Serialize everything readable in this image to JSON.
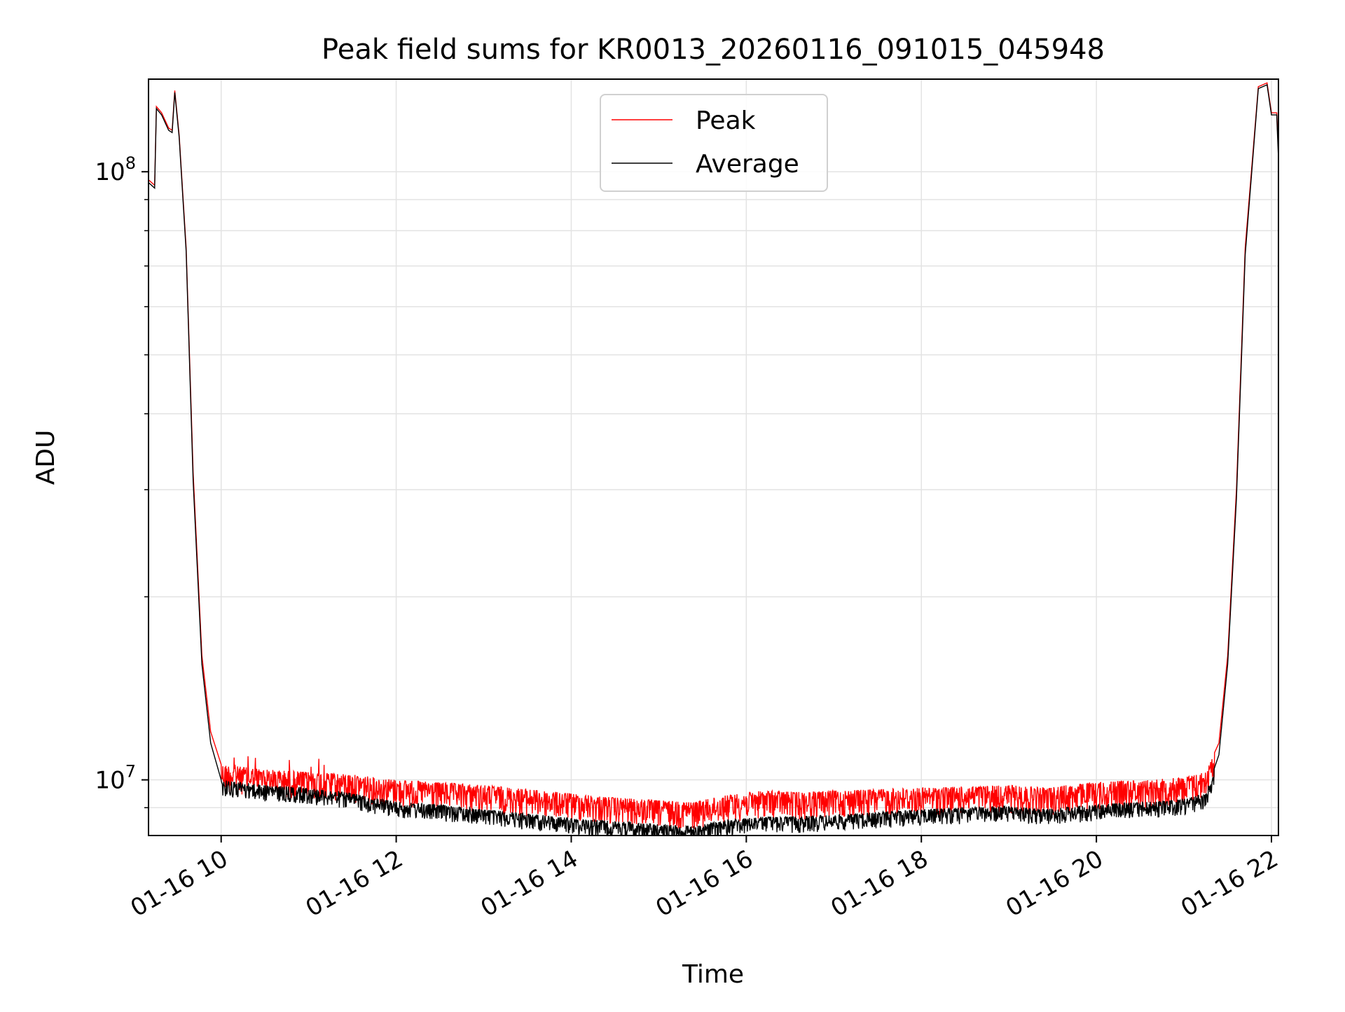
{
  "chart_data": {
    "type": "line",
    "title": "Peak field sums for KR0013_20260116_091015_045948",
    "xlabel": "Time",
    "ylabel": "ADU",
    "yscale": "log",
    "ylim": [
      8100000,
      142000000
    ],
    "xlim_hours": [
      9.17,
      22.08
    ],
    "x_ticks": [
      {
        "value": 10,
        "label": "01-16 10"
      },
      {
        "value": 12,
        "label": "01-16 12"
      },
      {
        "value": 14,
        "label": "01-16 14"
      },
      {
        "value": 16,
        "label": "01-16 16"
      },
      {
        "value": 18,
        "label": "01-16 18"
      },
      {
        "value": 20,
        "label": "01-16 20"
      },
      {
        "value": 22,
        "label": "01-16 22"
      }
    ],
    "y_major_ticks": [
      {
        "value": 10000000,
        "base": "10",
        "exp": "7"
      },
      {
        "value": 100000000,
        "base": "10",
        "exp": "8"
      }
    ],
    "y_minor_ticks": [
      9000000,
      20000000,
      30000000,
      40000000,
      50000000,
      60000000,
      70000000,
      80000000,
      90000000
    ],
    "grid": true,
    "legend_position": "top-center",
    "series": [
      {
        "name": "Peak",
        "color": "#ff0000",
        "noise_low_fraction": 0.1,
        "points": [
          [
            9.17,
            97000000
          ],
          [
            9.24,
            95000000
          ],
          [
            9.26,
            128000000
          ],
          [
            9.32,
            125000000
          ],
          [
            9.4,
            118000000
          ],
          [
            9.44,
            117000000
          ],
          [
            9.47,
            136000000
          ],
          [
            9.52,
            115000000
          ],
          [
            9.6,
            75000000
          ],
          [
            9.68,
            32000000
          ],
          [
            9.78,
            16000000
          ],
          [
            9.88,
            12000000
          ],
          [
            10.0,
            10600000
          ],
          [
            10.5,
            10400000
          ],
          [
            11.0,
            10300000
          ],
          [
            11.5,
            10200000
          ],
          [
            12.0,
            10000000
          ],
          [
            12.5,
            9900000
          ],
          [
            13.0,
            9800000
          ],
          [
            13.5,
            9650000
          ],
          [
            14.0,
            9500000
          ],
          [
            14.5,
            9350000
          ],
          [
            15.0,
            9250000
          ],
          [
            15.4,
            9200000
          ],
          [
            15.8,
            9450000
          ],
          [
            16.2,
            9600000
          ],
          [
            16.6,
            9550000
          ],
          [
            17.0,
            9600000
          ],
          [
            17.5,
            9650000
          ],
          [
            18.0,
            9700000
          ],
          [
            18.5,
            9750000
          ],
          [
            19.0,
            9800000
          ],
          [
            19.4,
            9700000
          ],
          [
            19.8,
            9850000
          ],
          [
            20.2,
            9950000
          ],
          [
            20.6,
            10000000
          ],
          [
            21.0,
            10100000
          ],
          [
            21.25,
            10300000
          ],
          [
            21.4,
            11500000
          ],
          [
            21.5,
            16000000
          ],
          [
            21.6,
            30000000
          ],
          [
            21.7,
            75000000
          ],
          [
            21.85,
            138000000
          ],
          [
            21.95,
            140000000
          ],
          [
            22.0,
            125000000
          ],
          [
            22.06,
            125000000
          ],
          [
            22.08,
            108000000
          ]
        ]
      },
      {
        "name": "Average",
        "color": "#000000",
        "noise_low_fraction": 0.06,
        "points": [
          [
            9.17,
            96000000
          ],
          [
            9.24,
            94000000
          ],
          [
            9.26,
            127000000
          ],
          [
            9.32,
            124000000
          ],
          [
            9.4,
            117000000
          ],
          [
            9.44,
            116000000
          ],
          [
            9.47,
            135000000
          ],
          [
            9.52,
            114000000
          ],
          [
            9.6,
            74000000
          ],
          [
            9.68,
            31000000
          ],
          [
            9.78,
            15500000
          ],
          [
            9.88,
            11500000
          ],
          [
            10.0,
            10000000
          ],
          [
            10.5,
            9800000
          ],
          [
            11.0,
            9700000
          ],
          [
            11.5,
            9500000
          ],
          [
            12.0,
            9200000
          ],
          [
            12.5,
            9100000
          ],
          [
            13.0,
            8950000
          ],
          [
            13.5,
            8800000
          ],
          [
            14.0,
            8650000
          ],
          [
            14.5,
            8550000
          ],
          [
            15.0,
            8450000
          ],
          [
            15.4,
            8400000
          ],
          [
            15.8,
            8600000
          ],
          [
            16.2,
            8700000
          ],
          [
            16.6,
            8700000
          ],
          [
            17.0,
            8750000
          ],
          [
            17.5,
            8850000
          ],
          [
            18.0,
            8950000
          ],
          [
            18.5,
            9000000
          ],
          [
            19.0,
            9050000
          ],
          [
            19.4,
            8950000
          ],
          [
            19.8,
            9050000
          ],
          [
            20.2,
            9150000
          ],
          [
            20.6,
            9200000
          ],
          [
            21.0,
            9300000
          ],
          [
            21.25,
            9500000
          ],
          [
            21.4,
            11000000
          ],
          [
            21.5,
            15500000
          ],
          [
            21.6,
            29000000
          ],
          [
            21.7,
            73000000
          ],
          [
            21.85,
            137000000
          ],
          [
            21.95,
            139000000
          ],
          [
            22.0,
            124000000
          ],
          [
            22.06,
            124000000
          ],
          [
            22.08,
            105000000
          ]
        ]
      }
    ]
  }
}
